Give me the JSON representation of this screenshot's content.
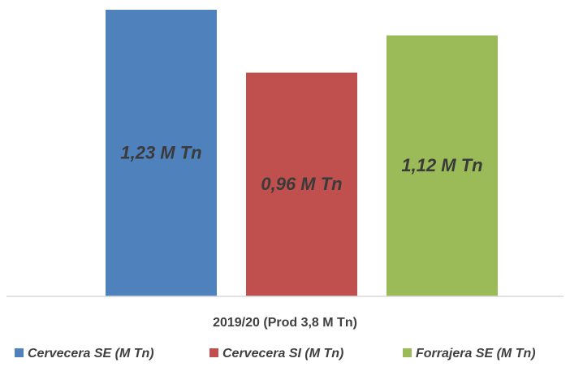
{
  "chart_data": {
    "type": "bar",
    "categories": [
      "2019/20 (Prod 3,8 M Tn)"
    ],
    "series": [
      {
        "name": "Cervecera SE (M Tn)",
        "values": [
          1.23
        ],
        "label": "1,23 M Tn",
        "color": "#4f81bd"
      },
      {
        "name": "Cervecera SI (M Tn)",
        "values": [
          0.96
        ],
        "label": "0,96 M Tn",
        "color": "#c0504d"
      },
      {
        "name": "Forrajera SE (M Tn)",
        "values": [
          1.12
        ],
        "label": "1,12 M Tn",
        "color": "#9bbb59"
      }
    ],
    "ylim": [
      0,
      1.23
    ],
    "grid": false,
    "legend": "bottom"
  }
}
